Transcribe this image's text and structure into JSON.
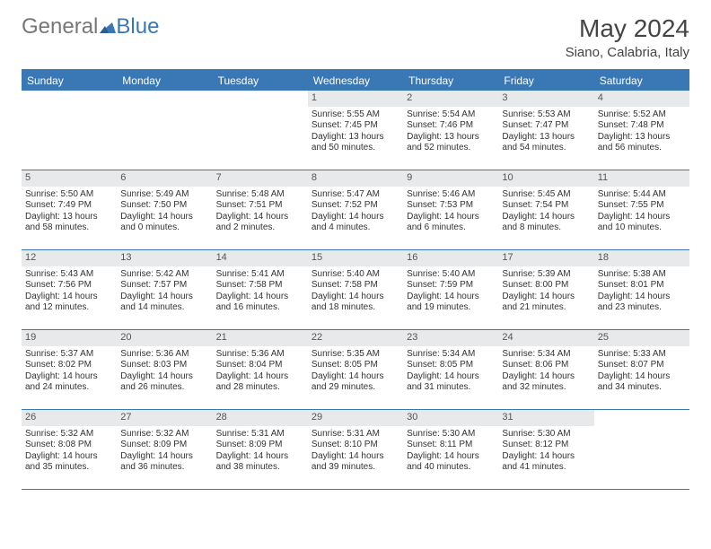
{
  "brand": {
    "part1": "General",
    "part2": "Blue"
  },
  "title": "May 2024",
  "location": "Siano, Calabria, Italy",
  "colors": {
    "accent": "#3a78b5",
    "daynum_bg": "#e8e9ea",
    "text": "#333333",
    "title_text": "#444444"
  },
  "dow": [
    "Sunday",
    "Monday",
    "Tuesday",
    "Wednesday",
    "Thursday",
    "Friday",
    "Saturday"
  ],
  "weeks": [
    [
      {
        "n": "",
        "empty": true
      },
      {
        "n": "",
        "empty": true
      },
      {
        "n": "",
        "empty": true
      },
      {
        "n": "1",
        "sr": "Sunrise: 5:55 AM",
        "ss": "Sunset: 7:45 PM",
        "d1": "Daylight: 13 hours",
        "d2": "and 50 minutes."
      },
      {
        "n": "2",
        "sr": "Sunrise: 5:54 AM",
        "ss": "Sunset: 7:46 PM",
        "d1": "Daylight: 13 hours",
        "d2": "and 52 minutes."
      },
      {
        "n": "3",
        "sr": "Sunrise: 5:53 AM",
        "ss": "Sunset: 7:47 PM",
        "d1": "Daylight: 13 hours",
        "d2": "and 54 minutes."
      },
      {
        "n": "4",
        "sr": "Sunrise: 5:52 AM",
        "ss": "Sunset: 7:48 PM",
        "d1": "Daylight: 13 hours",
        "d2": "and 56 minutes."
      }
    ],
    [
      {
        "n": "5",
        "sr": "Sunrise: 5:50 AM",
        "ss": "Sunset: 7:49 PM",
        "d1": "Daylight: 13 hours",
        "d2": "and 58 minutes."
      },
      {
        "n": "6",
        "sr": "Sunrise: 5:49 AM",
        "ss": "Sunset: 7:50 PM",
        "d1": "Daylight: 14 hours",
        "d2": "and 0 minutes."
      },
      {
        "n": "7",
        "sr": "Sunrise: 5:48 AM",
        "ss": "Sunset: 7:51 PM",
        "d1": "Daylight: 14 hours",
        "d2": "and 2 minutes."
      },
      {
        "n": "8",
        "sr": "Sunrise: 5:47 AM",
        "ss": "Sunset: 7:52 PM",
        "d1": "Daylight: 14 hours",
        "d2": "and 4 minutes."
      },
      {
        "n": "9",
        "sr": "Sunrise: 5:46 AM",
        "ss": "Sunset: 7:53 PM",
        "d1": "Daylight: 14 hours",
        "d2": "and 6 minutes."
      },
      {
        "n": "10",
        "sr": "Sunrise: 5:45 AM",
        "ss": "Sunset: 7:54 PM",
        "d1": "Daylight: 14 hours",
        "d2": "and 8 minutes."
      },
      {
        "n": "11",
        "sr": "Sunrise: 5:44 AM",
        "ss": "Sunset: 7:55 PM",
        "d1": "Daylight: 14 hours",
        "d2": "and 10 minutes."
      }
    ],
    [
      {
        "n": "12",
        "sr": "Sunrise: 5:43 AM",
        "ss": "Sunset: 7:56 PM",
        "d1": "Daylight: 14 hours",
        "d2": "and 12 minutes."
      },
      {
        "n": "13",
        "sr": "Sunrise: 5:42 AM",
        "ss": "Sunset: 7:57 PM",
        "d1": "Daylight: 14 hours",
        "d2": "and 14 minutes."
      },
      {
        "n": "14",
        "sr": "Sunrise: 5:41 AM",
        "ss": "Sunset: 7:58 PM",
        "d1": "Daylight: 14 hours",
        "d2": "and 16 minutes."
      },
      {
        "n": "15",
        "sr": "Sunrise: 5:40 AM",
        "ss": "Sunset: 7:58 PM",
        "d1": "Daylight: 14 hours",
        "d2": "and 18 minutes."
      },
      {
        "n": "16",
        "sr": "Sunrise: 5:40 AM",
        "ss": "Sunset: 7:59 PM",
        "d1": "Daylight: 14 hours",
        "d2": "and 19 minutes."
      },
      {
        "n": "17",
        "sr": "Sunrise: 5:39 AM",
        "ss": "Sunset: 8:00 PM",
        "d1": "Daylight: 14 hours",
        "d2": "and 21 minutes."
      },
      {
        "n": "18",
        "sr": "Sunrise: 5:38 AM",
        "ss": "Sunset: 8:01 PM",
        "d1": "Daylight: 14 hours",
        "d2": "and 23 minutes."
      }
    ],
    [
      {
        "n": "19",
        "sr": "Sunrise: 5:37 AM",
        "ss": "Sunset: 8:02 PM",
        "d1": "Daylight: 14 hours",
        "d2": "and 24 minutes."
      },
      {
        "n": "20",
        "sr": "Sunrise: 5:36 AM",
        "ss": "Sunset: 8:03 PM",
        "d1": "Daylight: 14 hours",
        "d2": "and 26 minutes."
      },
      {
        "n": "21",
        "sr": "Sunrise: 5:36 AM",
        "ss": "Sunset: 8:04 PM",
        "d1": "Daylight: 14 hours",
        "d2": "and 28 minutes."
      },
      {
        "n": "22",
        "sr": "Sunrise: 5:35 AM",
        "ss": "Sunset: 8:05 PM",
        "d1": "Daylight: 14 hours",
        "d2": "and 29 minutes."
      },
      {
        "n": "23",
        "sr": "Sunrise: 5:34 AM",
        "ss": "Sunset: 8:05 PM",
        "d1": "Daylight: 14 hours",
        "d2": "and 31 minutes."
      },
      {
        "n": "24",
        "sr": "Sunrise: 5:34 AM",
        "ss": "Sunset: 8:06 PM",
        "d1": "Daylight: 14 hours",
        "d2": "and 32 minutes."
      },
      {
        "n": "25",
        "sr": "Sunrise: 5:33 AM",
        "ss": "Sunset: 8:07 PM",
        "d1": "Daylight: 14 hours",
        "d2": "and 34 minutes."
      }
    ],
    [
      {
        "n": "26",
        "sr": "Sunrise: 5:32 AM",
        "ss": "Sunset: 8:08 PM",
        "d1": "Daylight: 14 hours",
        "d2": "and 35 minutes."
      },
      {
        "n": "27",
        "sr": "Sunrise: 5:32 AM",
        "ss": "Sunset: 8:09 PM",
        "d1": "Daylight: 14 hours",
        "d2": "and 36 minutes."
      },
      {
        "n": "28",
        "sr": "Sunrise: 5:31 AM",
        "ss": "Sunset: 8:09 PM",
        "d1": "Daylight: 14 hours",
        "d2": "and 38 minutes."
      },
      {
        "n": "29",
        "sr": "Sunrise: 5:31 AM",
        "ss": "Sunset: 8:10 PM",
        "d1": "Daylight: 14 hours",
        "d2": "and 39 minutes."
      },
      {
        "n": "30",
        "sr": "Sunrise: 5:30 AM",
        "ss": "Sunset: 8:11 PM",
        "d1": "Daylight: 14 hours",
        "d2": "and 40 minutes."
      },
      {
        "n": "31",
        "sr": "Sunrise: 5:30 AM",
        "ss": "Sunset: 8:12 PM",
        "d1": "Daylight: 14 hours",
        "d2": "and 41 minutes."
      },
      {
        "n": "",
        "empty": true
      }
    ]
  ]
}
